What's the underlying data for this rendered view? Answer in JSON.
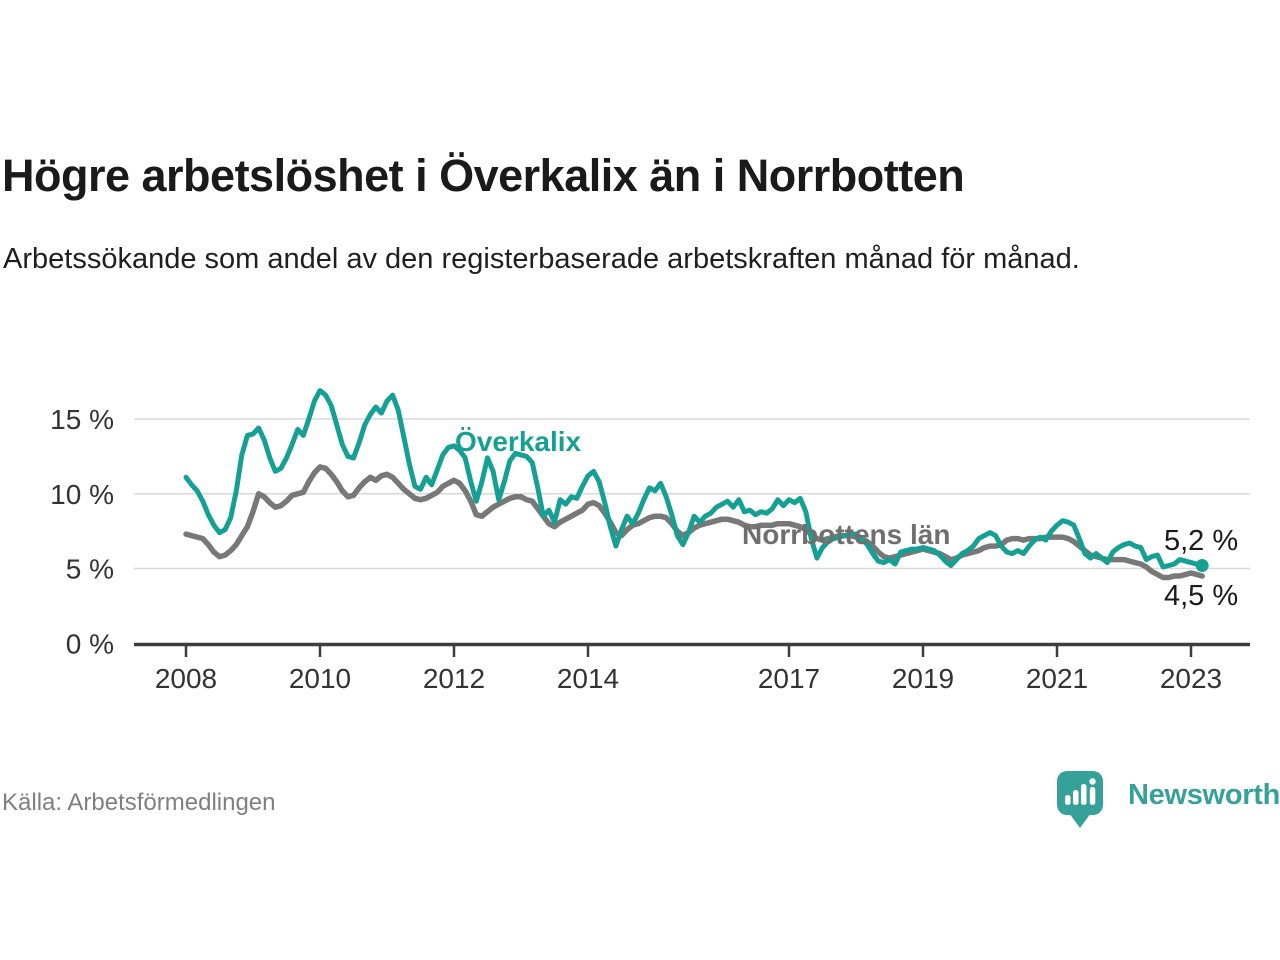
{
  "header": {
    "title": "Högre arbetslöshet i Överkalix än i Norrbotten",
    "subtitle": "Arbetssökande som andel av den registerbaserade arbetskraften månad för månad."
  },
  "chart_data": {
    "type": "line",
    "unit": "%",
    "frequency": "monthly",
    "x_start": "2008-01",
    "x_end": "2023-03",
    "ylim": [
      0,
      17.5
    ],
    "grid": "horizontal",
    "y_ticks": [
      0,
      5,
      10,
      15
    ],
    "y_tick_labels": [
      "0 %",
      "5 %",
      "10 %",
      "15 %"
    ],
    "x_tick_labels": [
      "2008",
      "2010",
      "2012",
      "2014",
      "2017",
      "2019",
      "2021",
      "2023"
    ],
    "series": [
      {
        "id": "overkalix",
        "name": "Överkalix",
        "color": "#16a094",
        "end_label": "5,2 %",
        "end_value": 5.2,
        "values": [
          11.1,
          10.6,
          10.2,
          9.5,
          8.6,
          7.9,
          7.4,
          7.6,
          8.4,
          10.2,
          12.6,
          13.9,
          14.0,
          14.4,
          13.6,
          12.4,
          11.5,
          11.7,
          12.4,
          13.3,
          14.3,
          13.9,
          15.0,
          16.2,
          16.9,
          16.6,
          15.9,
          14.6,
          13.3,
          12.5,
          12.4,
          13.4,
          14.6,
          15.3,
          15.8,
          15.4,
          16.2,
          16.6,
          15.6,
          13.8,
          12.0,
          10.5,
          10.3,
          11.1,
          10.6,
          11.6,
          12.6,
          13.1,
          13.2,
          12.9,
          12.4,
          10.8,
          9.5,
          10.8,
          12.4,
          11.5,
          9.6,
          10.8,
          12.2,
          12.7,
          12.6,
          12.5,
          12.1,
          10.4,
          8.5,
          8.9,
          8.1,
          9.6,
          9.3,
          9.8,
          9.7,
          10.5,
          11.2,
          11.5,
          10.8,
          9.4,
          7.8,
          6.5,
          7.6,
          8.5,
          8.0,
          8.7,
          9.6,
          10.4,
          10.2,
          10.7,
          9.8,
          8.6,
          7.2,
          6.6,
          7.4,
          8.5,
          8.1,
          8.5,
          8.7,
          9.1,
          9.3,
          9.5,
          9.1,
          9.6,
          8.8,
          8.9,
          8.6,
          8.8,
          8.7,
          9.0,
          9.6,
          9.2,
          9.6,
          9.4,
          9.7,
          8.8,
          7.0,
          5.7,
          6.4,
          6.8,
          7.0,
          7.1,
          7.2,
          7.3,
          7.3,
          7.0,
          6.6,
          6.0,
          5.5,
          5.4,
          5.6,
          5.3,
          6.1,
          6.2,
          6.3,
          6.3,
          6.4,
          6.3,
          6.2,
          5.9,
          5.5,
          5.2,
          5.6,
          6.0,
          6.2,
          6.5,
          7.0,
          7.2,
          7.4,
          7.2,
          6.5,
          6.1,
          6.0,
          6.2,
          6.0,
          6.5,
          6.9,
          7.1,
          6.9,
          7.5,
          7.9,
          8.2,
          8.1,
          7.9,
          7.0,
          6.0,
          5.7,
          6.0,
          5.7,
          5.4,
          6.1,
          6.4,
          6.6,
          6.7,
          6.5,
          6.4,
          5.6,
          5.8,
          5.9,
          5.1,
          5.2,
          5.3,
          5.6,
          5.5,
          5.4,
          5.3,
          5.2
        ]
      },
      {
        "id": "norrbotten",
        "name": "Norrbottens län",
        "color": "#787878",
        "end_label": "4,5 %",
        "end_value": 4.5,
        "values": [
          7.3,
          7.2,
          7.1,
          7.0,
          6.6,
          6.1,
          5.8,
          5.9,
          6.2,
          6.6,
          7.2,
          7.8,
          8.8,
          10.0,
          9.8,
          9.4,
          9.1,
          9.2,
          9.5,
          9.9,
          10.0,
          10.1,
          10.8,
          11.4,
          11.8,
          11.7,
          11.3,
          10.8,
          10.2,
          9.8,
          9.9,
          10.4,
          10.8,
          11.1,
          10.9,
          11.2,
          11.3,
          11.1,
          10.7,
          10.3,
          10.0,
          9.7,
          9.6,
          9.7,
          9.9,
          10.1,
          10.5,
          10.7,
          10.9,
          10.7,
          10.2,
          9.5,
          8.6,
          8.5,
          8.8,
          9.1,
          9.3,
          9.5,
          9.7,
          9.8,
          9.8,
          9.6,
          9.5,
          9.0,
          8.5,
          8.0,
          7.8,
          8.1,
          8.3,
          8.5,
          8.7,
          8.9,
          9.3,
          9.4,
          9.2,
          8.7,
          8.1,
          7.4,
          7.2,
          7.6,
          7.9,
          8.0,
          8.2,
          8.4,
          8.5,
          8.5,
          8.4,
          8.0,
          7.5,
          7.2,
          7.4,
          7.7,
          7.9,
          8.0,
          8.1,
          8.2,
          8.3,
          8.3,
          8.2,
          8.1,
          7.9,
          7.8,
          7.8,
          7.9,
          7.9,
          7.9,
          8.0,
          8.0,
          8.0,
          7.9,
          7.8,
          7.6,
          7.3,
          7.0,
          6.9,
          7.0,
          7.1,
          7.2,
          7.2,
          7.2,
          7.1,
          7.0,
          6.8,
          6.5,
          6.1,
          5.8,
          5.7,
          5.8,
          5.9,
          6.0,
          6.1,
          6.2,
          6.3,
          6.2,
          6.1,
          6.0,
          5.8,
          5.6,
          5.7,
          5.9,
          6.0,
          6.1,
          6.2,
          6.4,
          6.5,
          6.5,
          6.6,
          6.9,
          7.0,
          7.0,
          6.9,
          7.0,
          7.0,
          7.0,
          7.1,
          7.1,
          7.1,
          7.1,
          7.0,
          6.8,
          6.5,
          6.2,
          5.9,
          5.8,
          5.7,
          5.6,
          5.6,
          5.6,
          5.6,
          5.5,
          5.4,
          5.3,
          5.1,
          4.8,
          4.6,
          4.4,
          4.4,
          4.5,
          4.5,
          4.6,
          4.7,
          4.6,
          4.5
        ]
      }
    ]
  },
  "annotations": {
    "overkalix_label": "Överkalix",
    "norrbotten_label": "Norrbottens län",
    "end_value_top": "5,2 %",
    "end_value_bottom": "4,5 %"
  },
  "footer": {
    "source": "Källa: Arbetsförmedlingen",
    "brand": "Newsworthy"
  },
  "colors": {
    "accent_teal": "#16a094",
    "series_gray": "#787878",
    "brand_teal": "#36a198",
    "axis_text": "#333333",
    "gridline": "#d8d8d8",
    "axis_line": "#3d3d3d",
    "source_text": "#7f7f7f"
  }
}
